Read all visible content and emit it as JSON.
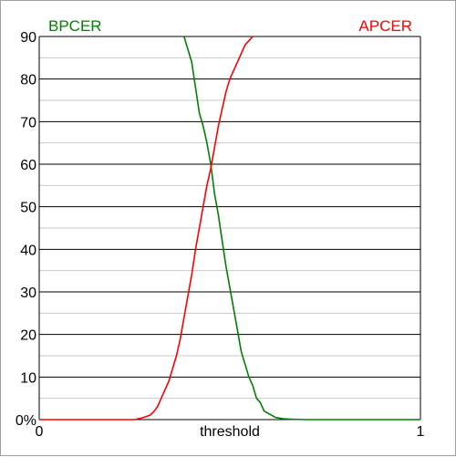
{
  "chart_data": {
    "type": "line",
    "title": "",
    "xlabel": "threshold",
    "ylabel": "",
    "xlim": [
      0,
      1
    ],
    "ylim": [
      0,
      90
    ],
    "grid": true,
    "legend_placement": "top",
    "y_ticks": [
      {
        "value": 0,
        "label": "0%"
      },
      {
        "value": 10,
        "label": "10"
      },
      {
        "value": 20,
        "label": "20"
      },
      {
        "value": 30,
        "label": "30"
      },
      {
        "value": 40,
        "label": "40"
      },
      {
        "value": 50,
        "label": "50"
      },
      {
        "value": 60,
        "label": "60"
      },
      {
        "value": 70,
        "label": "70"
      },
      {
        "value": 80,
        "label": "80"
      },
      {
        "value": 90,
        "label": "90"
      }
    ],
    "x_ticks": [
      {
        "value": 0,
        "label": "0"
      },
      {
        "value": 1,
        "label": "1"
      }
    ],
    "series": [
      {
        "name": "BPCER",
        "color": "#008000",
        "legend_position": "top-left",
        "x": [
          0.38,
          0.39,
          0.4,
          0.41,
          0.42,
          0.43,
          0.44,
          0.45,
          0.46,
          0.47,
          0.48,
          0.49,
          0.5,
          0.51,
          0.52,
          0.53,
          0.54,
          0.55,
          0.56,
          0.57,
          0.58,
          0.59,
          0.6,
          0.61,
          0.62,
          0.64,
          0.66,
          0.7,
          0.8,
          0.9,
          1.0
        ],
        "values": [
          90,
          87,
          84,
          78,
          72,
          69,
          65,
          60,
          53,
          48,
          42,
          36,
          31,
          26,
          21,
          16,
          13,
          10,
          8,
          5,
          4,
          2,
          1.5,
          1,
          0.5,
          0.2,
          0.1,
          0,
          0,
          0,
          0
        ]
      },
      {
        "name": "APCER",
        "color": "#ff0000",
        "legend_position": "top-right",
        "x": [
          0.0,
          0.1,
          0.2,
          0.25,
          0.27,
          0.29,
          0.3,
          0.31,
          0.32,
          0.33,
          0.34,
          0.35,
          0.36,
          0.37,
          0.38,
          0.39,
          0.4,
          0.41,
          0.42,
          0.43,
          0.44,
          0.45,
          0.46,
          0.47,
          0.48,
          0.49,
          0.5,
          0.51,
          0.52,
          0.53,
          0.54,
          0.55,
          0.56
        ],
        "values": [
          0,
          0,
          0,
          0,
          0.4,
          1,
          1.8,
          3,
          5,
          7,
          9,
          12,
          15,
          19,
          24,
          29,
          34,
          40,
          45,
          50,
          55,
          59,
          64,
          69,
          73,
          77,
          80,
          82,
          84,
          86,
          88,
          89,
          90
        ]
      }
    ]
  }
}
